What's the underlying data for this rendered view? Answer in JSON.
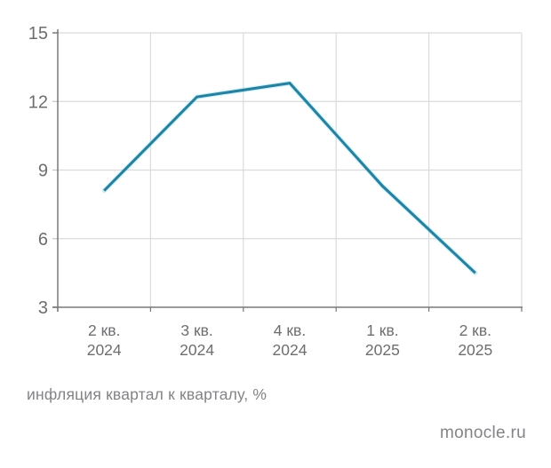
{
  "caption": "инфляция квартал к кварталу, %",
  "source": "monocle.ru",
  "colors": {
    "line": "#1d84a5",
    "line_glow": "#6ec9de",
    "grid": "#dadbdc",
    "axis": "#77787a",
    "tick": "#c3c4c6",
    "tick_label": "#6d6e70",
    "caption_text": "#828386",
    "source_text": "#838487",
    "background": "#ffffff"
  },
  "chart_data": {
    "type": "line",
    "categories": [
      "2 кв. 2024",
      "3 кв. 2024",
      "4 кв. 2024",
      "1 кв. 2025",
      "2 кв. 2025"
    ],
    "category_lines": [
      [
        "2 кв.",
        "2024"
      ],
      [
        "3 кв.",
        "2024"
      ],
      [
        "4 кв.",
        "2024"
      ],
      [
        "1 кв.",
        "2025"
      ],
      [
        "2 кв.",
        "2025"
      ]
    ],
    "values": [
      8.1,
      12.2,
      12.8,
      8.3,
      4.5
    ],
    "title": "",
    "xlabel": "",
    "ylabel": "инфляция квартал к кварталу, %",
    "ylim": [
      3,
      15
    ],
    "yticks": [
      3,
      6,
      9,
      12,
      15
    ],
    "grid": true,
    "legend": "none",
    "caption": "инфляция квартал к кварталу, %",
    "source": "monocle.ru"
  }
}
